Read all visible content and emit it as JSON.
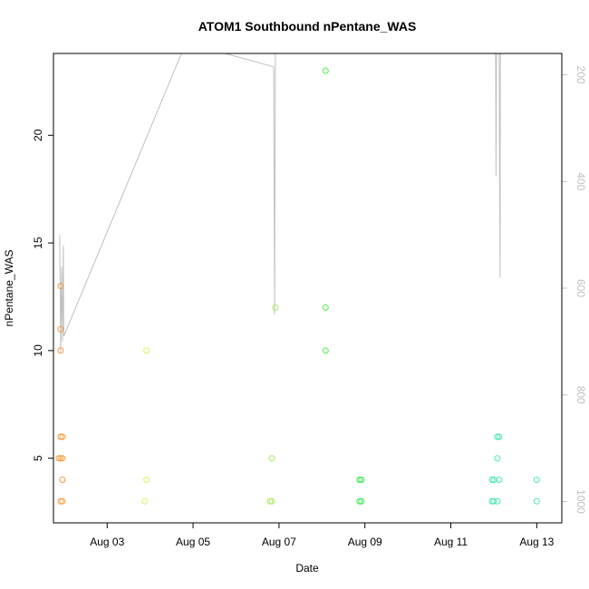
{
  "chart_data": {
    "type": "scatter",
    "title": "ATOM1 Southbound nPentane_WAS",
    "xlabel": "Date",
    "ylabel": "nPentane_WAS",
    "x_ticks": [
      "Aug 03",
      "Aug 05",
      "Aug 07",
      "Aug 09",
      "Aug 11",
      "Aug 13"
    ],
    "y_ticks": [
      "5",
      "10",
      "15",
      "20"
    ],
    "y2_ticks": [
      "200",
      "400",
      "600",
      "800",
      "1000"
    ],
    "xlim": [
      "2013-08-01T18:00",
      "2013-08-13T14:00"
    ],
    "ylim": [
      2.0,
      23.8
    ],
    "y2lim": [
      1040,
      160
    ],
    "y2_reversed": true,
    "grid": false,
    "colors": {
      "line": "#c0c0c0",
      "right_axis": "#c0c0c0",
      "axis": "#000000"
    },
    "points": [
      {
        "x": "2013-08-01T22:00",
        "y": 13,
        "color": "#f39c3c"
      },
      {
        "x": "2013-08-01T22:00",
        "y": 11,
        "color": "#f39c3c"
      },
      {
        "x": "2013-08-01T22:00",
        "y": 10,
        "color": "#f39c3c"
      },
      {
        "x": "2013-08-01T22:00",
        "y": 6,
        "color": "#f39c3c"
      },
      {
        "x": "2013-08-01T23:00",
        "y": 6,
        "color": "#f39c3c"
      },
      {
        "x": "2013-08-01T21:00",
        "y": 5,
        "color": "#f39c3c"
      },
      {
        "x": "2013-08-01T22:00",
        "y": 5,
        "color": "#f39c3c"
      },
      {
        "x": "2013-08-01T23:00",
        "y": 5,
        "color": "#f39c3c"
      },
      {
        "x": "2013-08-01T23:00",
        "y": 4,
        "color": "#f39c3c"
      },
      {
        "x": "2013-08-01T22:00",
        "y": 3,
        "color": "#f39c3c"
      },
      {
        "x": "2013-08-01T23:00",
        "y": 3,
        "color": "#f39c3c"
      },
      {
        "x": "2013-08-03T22:00",
        "y": 10,
        "color": "#e6ed5a"
      },
      {
        "x": "2013-08-03T22:00",
        "y": 4,
        "color": "#e6ed5a"
      },
      {
        "x": "2013-08-03T21:00",
        "y": 3,
        "color": "#e6ed5a"
      },
      {
        "x": "2013-08-06T22:00",
        "y": 12,
        "color": "#a4ec5a"
      },
      {
        "x": "2013-08-06T20:00",
        "y": 5,
        "color": "#a4ec5a"
      },
      {
        "x": "2013-08-06T19:00",
        "y": 3,
        "color": "#a4ec5a"
      },
      {
        "x": "2013-08-06T20:00",
        "y": 3,
        "color": "#a4ec5a"
      },
      {
        "x": "2013-08-08T02:00",
        "y": 23,
        "color": "#4cf04c"
      },
      {
        "x": "2013-08-08T02:00",
        "y": 12,
        "color": "#4cf04c"
      },
      {
        "x": "2013-08-08T02:00",
        "y": 10,
        "color": "#4cf04c"
      },
      {
        "x": "2013-08-08T21:00",
        "y": 4,
        "color": "#35e850"
      },
      {
        "x": "2013-08-08T22:00",
        "y": 4,
        "color": "#35e850"
      },
      {
        "x": "2013-08-08T21:00",
        "y": 3,
        "color": "#35e850"
      },
      {
        "x": "2013-08-08T22:00",
        "y": 3,
        "color": "#35e850"
      },
      {
        "x": "2013-08-12T02:00",
        "y": 6,
        "color": "#45e8b2"
      },
      {
        "x": "2013-08-12T02:00",
        "y": 5,
        "color": "#45e8b2"
      },
      {
        "x": "2013-08-11T23:00",
        "y": 4,
        "color": "#45e8b2"
      },
      {
        "x": "2013-08-12T00:00",
        "y": 4,
        "color": "#45e8b2"
      },
      {
        "x": "2013-08-12T03:00",
        "y": 4,
        "color": "#45e8b2"
      },
      {
        "x": "2013-08-11T23:00",
        "y": 3,
        "color": "#45e8b2"
      },
      {
        "x": "2013-08-12T00:00",
        "y": 3,
        "color": "#45e8b2"
      },
      {
        "x": "2013-08-12T02:00",
        "y": 3,
        "color": "#45e8b2"
      },
      {
        "x": "2013-08-12T03:00",
        "y": 6,
        "color": "#45e8b2"
      },
      {
        "x": "2013-08-13T00:00",
        "y": 4,
        "color": "#45e8b2"
      },
      {
        "x": "2013-08-13T00:00",
        "y": 3,
        "color": "#45e8b2"
      }
    ],
    "line_series": [
      {
        "x": "2013-08-01T21:30",
        "y2": 500
      },
      {
        "x": "2013-08-01T22:00",
        "y2": 720
      },
      {
        "x": "2013-08-01T22:30",
        "y2": 560
      },
      {
        "x": "2013-08-01T23:00",
        "y2": 700
      },
      {
        "x": "2013-08-01T23:30",
        "y2": 520
      },
      {
        "x": "2013-08-01T23:45",
        "y2": 690
      },
      {
        "x": "2013-08-04T20:00",
        "y2": 140
      },
      {
        "x": "2013-08-06T21:00",
        "y2": 185
      },
      {
        "x": "2013-08-06T21:30",
        "y2": 650
      },
      {
        "x": "2013-08-06T22:00",
        "y2": 150
      },
      {
        "x": "2013-08-12T01:00",
        "y2": 140
      },
      {
        "x": "2013-08-12T01:15",
        "y2": 390
      },
      {
        "x": "2013-08-12T01:30",
        "y2": 150
      },
      {
        "x": "2013-08-12T03:00",
        "y2": 155
      },
      {
        "x": "2013-08-12T03:15",
        "y2": 425
      },
      {
        "x": "2013-08-12T03:30",
        "y2": 580
      },
      {
        "x": "2013-08-12T03:40",
        "y2": 150
      }
    ]
  }
}
